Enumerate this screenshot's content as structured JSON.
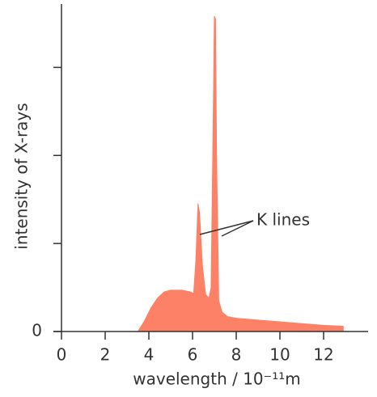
{
  "chart_data": {
    "type": "area",
    "xlabel": "wavelength / 10⁻¹¹m",
    "ylabel": "intensity of X-rays",
    "annotation": "K lines",
    "color": "#fd8166",
    "xlim": [
      0,
      14
    ],
    "ylim": [
      0,
      3.72
    ],
    "xticks": [
      0,
      2,
      4,
      6,
      8,
      10,
      12
    ],
    "yticks": [
      0,
      {
        "value": 1,
        "label": null
      },
      {
        "value": 2,
        "label": null
      },
      {
        "value": 3,
        "label": null
      }
    ],
    "x": [
      3.5,
      3.8,
      4.1,
      4.4,
      4.7,
      5.0,
      5.5,
      5.9,
      6.05,
      6.15,
      6.25,
      6.32,
      6.45,
      6.6,
      6.75,
      6.85,
      6.95,
      7.0,
      7.05,
      7.1,
      7.2,
      7.35,
      7.6,
      8.0,
      9,
      10,
      11,
      12,
      12.9,
      12.9
    ],
    "values": [
      0,
      0.12,
      0.27,
      0.38,
      0.45,
      0.47,
      0.47,
      0.45,
      0.43,
      0.8,
      1.45,
      1.35,
      0.75,
      0.42,
      0.38,
      0.5,
      2.5,
      3.58,
      3.55,
      2.0,
      0.35,
      0.22,
      0.17,
      0.15,
      0.13,
      0.11,
      0.09,
      0.07,
      0.06,
      0
    ]
  }
}
